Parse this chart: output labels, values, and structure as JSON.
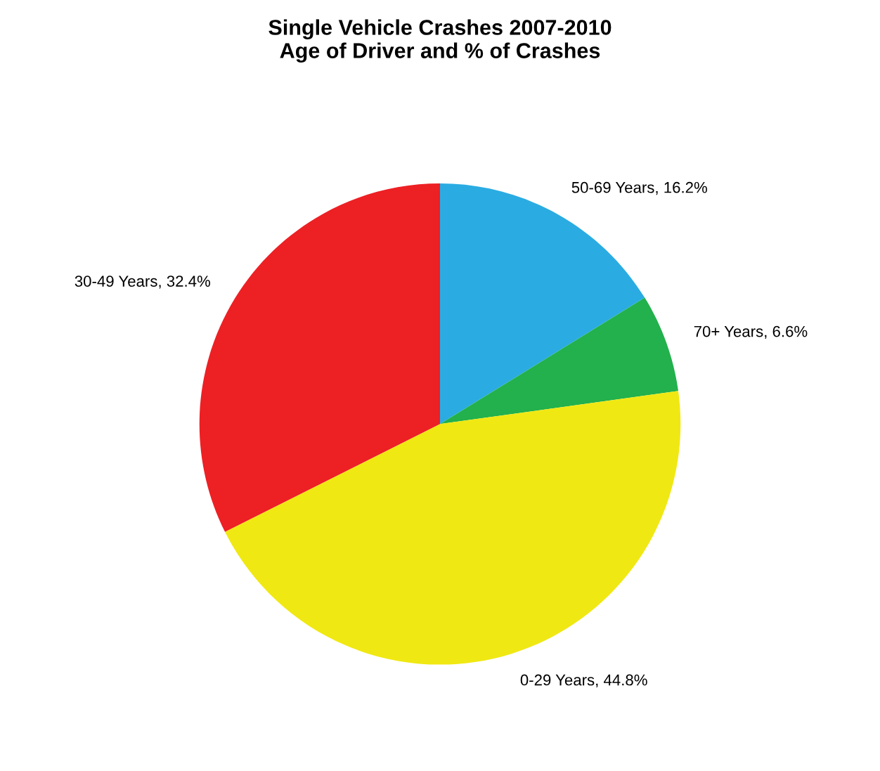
{
  "chart_data": {
    "type": "pie",
    "title": "Single Vehicle Crashes 2007-2010\nAge of Driver and % of Crashes",
    "categories": [
      "50-69 Years",
      "70+ Years",
      "0-29 Years",
      "30-49 Years"
    ],
    "values": [
      16.2,
      6.6,
      44.8,
      32.4
    ],
    "value_labels": [
      "16.2%",
      "6.6%",
      "44.8%",
      "32.4%"
    ],
    "colors": [
      "#2aace2",
      "#22b14c",
      "#f0e812",
      "#ed2024"
    ],
    "legend": false
  }
}
